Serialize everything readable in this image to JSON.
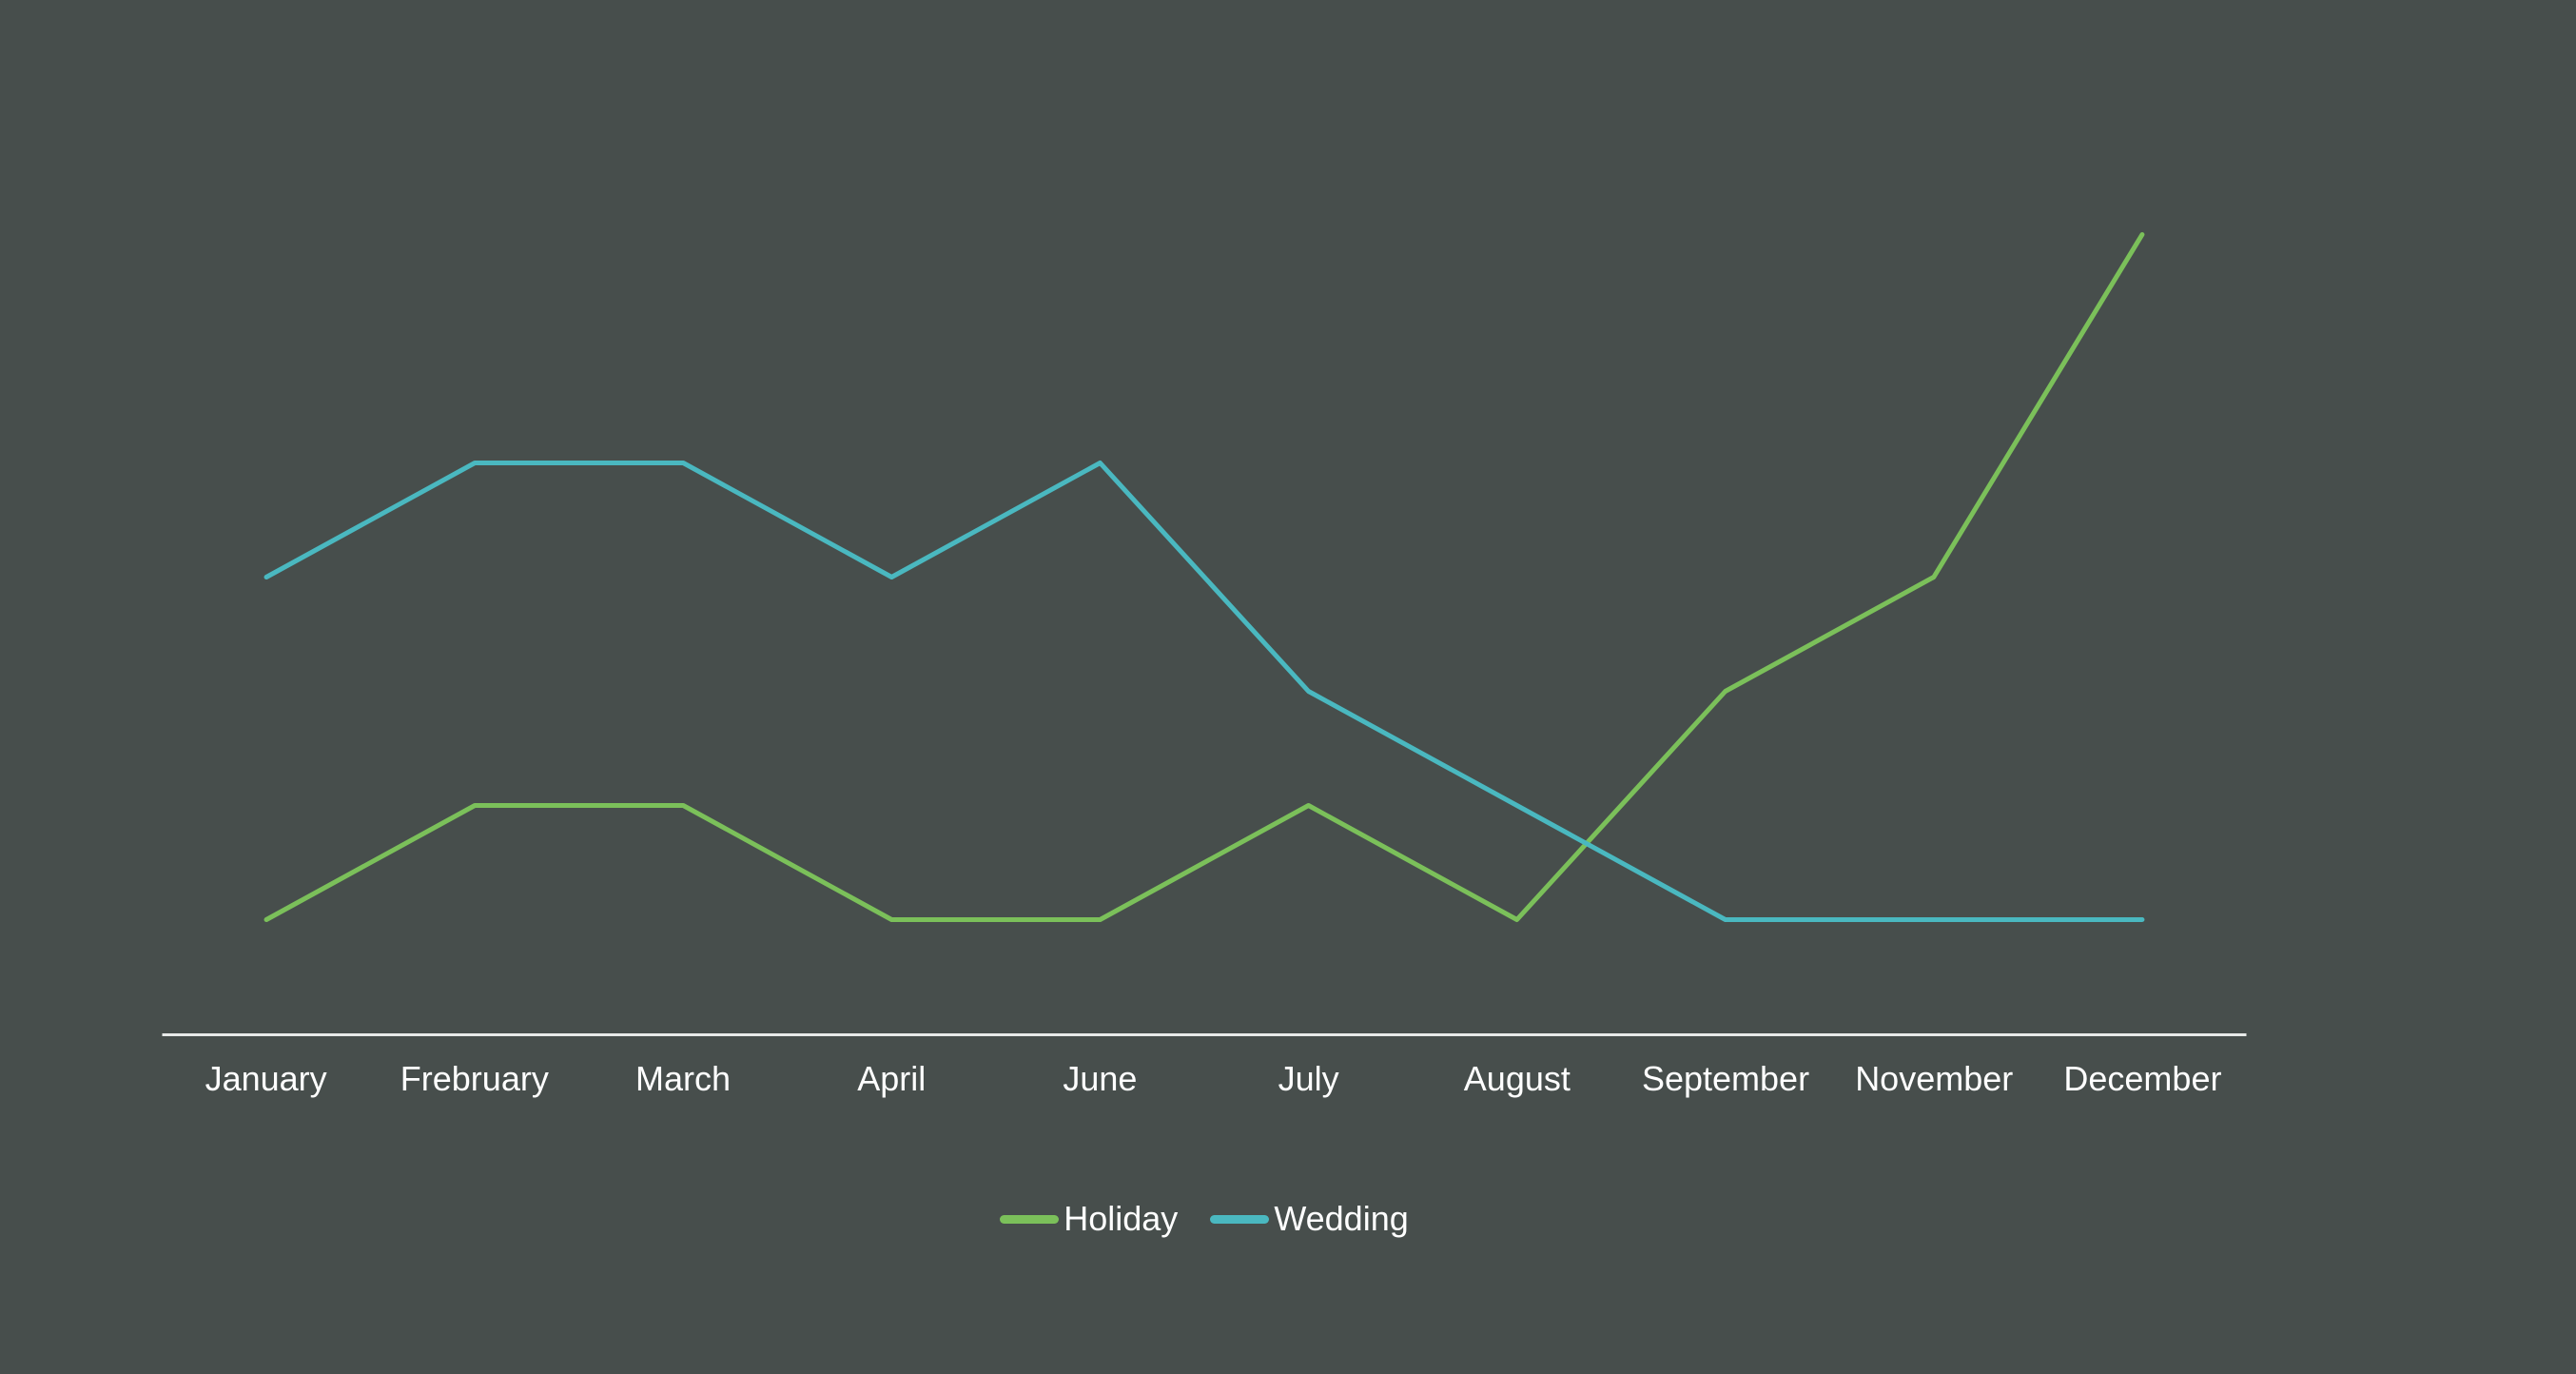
{
  "chart_data": {
    "type": "line",
    "title": "",
    "xlabel": "",
    "ylabel": "",
    "categories": [
      "January",
      "Frebruary",
      "March",
      "April",
      "June",
      "July",
      "August",
      "September",
      "November",
      "December"
    ],
    "series": [
      {
        "name": "Holiday",
        "color": "#7BC05A",
        "values": [
          1,
          2,
          2,
          1,
          1,
          2,
          1,
          3,
          4,
          7
        ]
      },
      {
        "name": "Wedding",
        "color": "#4AB8C0",
        "values": [
          4,
          5,
          5,
          4,
          5,
          3,
          2,
          1,
          1,
          1
        ]
      }
    ],
    "ylim": [
      0,
      8
    ],
    "y_axis_visible": false,
    "x_axis_visible": true,
    "grid": false,
    "legend_position": "bottom-center"
  },
  "colors": {
    "background": "#474E4C",
    "axis_line": "#E8EAE9",
    "label_text": "#FFFFFF"
  }
}
